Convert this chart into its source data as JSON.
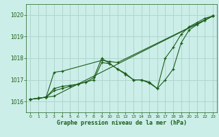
{
  "xlabel": "Graphe pression niveau de la mer (hPa)",
  "bg_color": "#cceee8",
  "grid_color": "#b0d4ce",
  "line_color": "#1a5c1a",
  "xlim": [
    -0.5,
    23.5
  ],
  "ylim": [
    1015.5,
    1020.5
  ],
  "yticks": [
    1016,
    1017,
    1018,
    1019,
    1020
  ],
  "xticks": [
    0,
    1,
    2,
    3,
    4,
    5,
    6,
    7,
    8,
    9,
    10,
    11,
    12,
    13,
    14,
    15,
    16,
    17,
    18,
    19,
    20,
    21,
    22,
    23
  ],
  "series": [
    {
      "x": [
        0,
        1,
        2,
        3,
        23
      ],
      "y": [
        1016.1,
        1016.15,
        1016.2,
        1016.25,
        1019.95
      ]
    },
    {
      "x": [
        0,
        1,
        2,
        3,
        4,
        5,
        6,
        7,
        8,
        9,
        10,
        11,
        12,
        13,
        14,
        15,
        16,
        17,
        18,
        19,
        20,
        21,
        22,
        23
      ],
      "y": [
        1016.1,
        1016.15,
        1016.2,
        1016.5,
        1016.6,
        1016.7,
        1016.8,
        1016.9,
        1017.1,
        1018.0,
        1017.75,
        1017.5,
        1017.3,
        1017.0,
        1017.0,
        1016.9,
        1016.6,
        1017.0,
        1017.5,
        1018.7,
        1019.3,
        1019.55,
        1019.75,
        1019.95
      ]
    },
    {
      "x": [
        0,
        1,
        2,
        3,
        4,
        9,
        10,
        11,
        23
      ],
      "y": [
        1016.1,
        1016.15,
        1016.2,
        1017.35,
        1017.4,
        1017.9,
        1017.85,
        1017.8,
        1019.95
      ]
    },
    {
      "x": [
        0,
        1,
        2,
        3,
        4,
        5,
        6,
        7,
        8,
        9,
        10,
        11,
        12,
        13,
        14,
        15,
        16,
        17,
        18,
        19,
        20,
        21,
        22,
        23
      ],
      "y": [
        1016.1,
        1016.15,
        1016.2,
        1016.6,
        1016.7,
        1016.75,
        1016.8,
        1016.9,
        1017.0,
        1017.8,
        1017.75,
        1017.5,
        1017.25,
        1017.0,
        1017.0,
        1016.85,
        1016.6,
        1018.0,
        1018.5,
        1019.1,
        1019.45,
        1019.65,
        1019.85,
        1019.95
      ]
    }
  ]
}
